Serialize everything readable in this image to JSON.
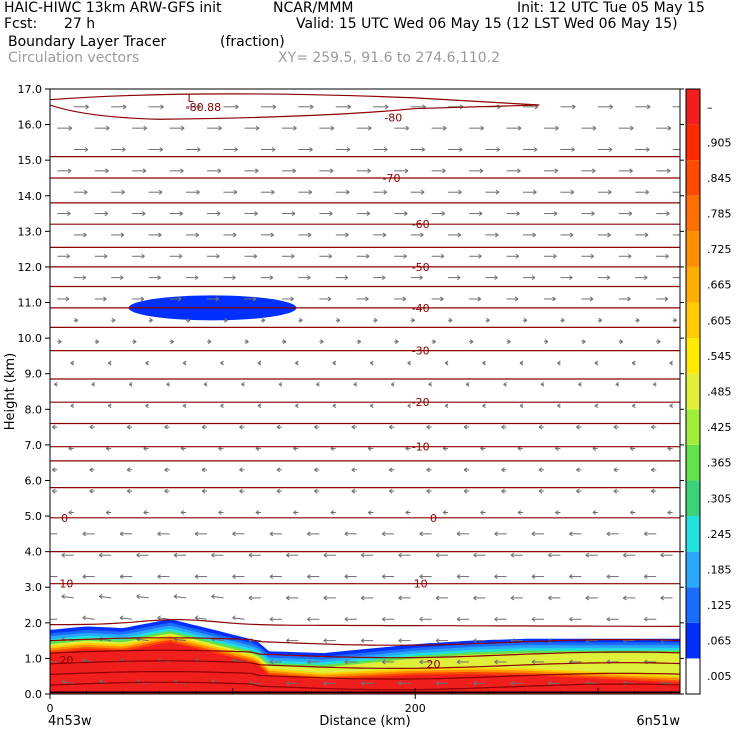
{
  "header": {
    "model": "HAIC-HIWC 13km ARW-GFS init",
    "org": "NCAR/MMM",
    "init": "Init: 12 UTC Tue 05 May 15",
    "fcst_label": "Fcst:",
    "fcst_value": "27 h",
    "valid": "Valid: 15 UTC Wed 06 May 15 (12 LST Wed 06 May 15)",
    "field": "Boundary Layer Tracer",
    "field_units": "(fraction)",
    "vectors": "Circulation vectors",
    "xy": "XY= 259.5, 91.6 to 274.6,110.2"
  },
  "colors": {
    "contour": "#8b0000",
    "vector": "#707070",
    "scale": [
      "#ffffff",
      "#0030ff",
      "#1a6dff",
      "#2aa8ff",
      "#20e0e0",
      "#3cd27a",
      "#63e04b",
      "#a0ee3a",
      "#e0f03a",
      "#ffea00",
      "#ffcc00",
      "#ffae00",
      "#ff8e00",
      "#ff6e00",
      "#ff4a00",
      "#ff2a00",
      "#f11e1e"
    ]
  },
  "chart_data": {
    "type": "heatmap",
    "title": "Boundary Layer Tracer",
    "xlabel": "Distance (km)",
    "ylabel": "Height (km)",
    "xlim": [
      0,
      345
    ],
    "ylim": [
      0,
      17
    ],
    "x_ticks": [
      0,
      200
    ],
    "x_tick_labels": [
      "0",
      "200"
    ],
    "x_endpoint_labels": [
      "4n53w",
      "6n51w"
    ],
    "y_ticks": [
      0,
      1,
      2,
      3,
      4,
      5,
      6,
      7,
      8,
      9,
      10,
      11,
      12,
      13,
      14,
      15,
      16,
      17
    ],
    "y_tick_labels": [
      "0.0",
      "1.0",
      "2.0",
      "3.0",
      "4.0",
      "5.0",
      "6.0",
      "7.0",
      "8.0",
      "9.0",
      "10.0",
      "11.0",
      "12.0",
      "13.0",
      "14.0",
      "15.0",
      "16.0",
      "17.0"
    ],
    "colorbar_labels": [
      ".005",
      ".065",
      ".125",
      ".185",
      ".245",
      ".305",
      ".365",
      ".425",
      ".485",
      ".545",
      ".605",
      ".665",
      ".725",
      ".785",
      ".845",
      ".905",
      "–"
    ],
    "contour_labels": [
      {
        "text": "-80.88",
        "x": 84,
        "z": 16.5
      },
      {
        "text": "L",
        "x": 77,
        "z": 16.75
      },
      {
        "text": "-80",
        "x": 188,
        "z": 16.2
      },
      {
        "text": "-70",
        "x": 187,
        "z": 14.5
      },
      {
        "text": "-60",
        "x": 203,
        "z": 13.2
      },
      {
        "text": "-50",
        "x": 203,
        "z": 12.0
      },
      {
        "text": "-40",
        "x": 203,
        "z": 10.85
      },
      {
        "text": "-30",
        "x": 203,
        "z": 9.65
      },
      {
        "text": "-20",
        "x": 203,
        "z": 8.2
      },
      {
        "text": "-10",
        "x": 203,
        "z": 6.95
      },
      {
        "text": "0",
        "x": 8,
        "z": 4.95
      },
      {
        "text": "0",
        "x": 210,
        "z": 4.95
      },
      {
        "text": "10",
        "x": 9,
        "z": 3.1
      },
      {
        "text": "10",
        "x": 203,
        "z": 3.1
      },
      {
        "text": "20",
        "x": 9,
        "z": 0.95
      },
      {
        "text": "20",
        "x": 210,
        "z": 0.85
      }
    ],
    "tracer_regions": [
      {
        "name": "boundary-layer",
        "x": [
          0,
          20,
          40,
          60,
          66,
          90,
          113,
          120,
          150,
          180,
          200,
          230,
          260,
          290,
          345
        ],
        "top_z": [
          1.8,
          1.9,
          1.85,
          2.05,
          2.1,
          1.8,
          1.5,
          1.2,
          1.15,
          1.3,
          1.4,
          1.5,
          1.55,
          1.55,
          1.55
        ]
      },
      {
        "name": "upper-blob",
        "x_center": 89,
        "x_half_width": 46,
        "z_center": 10.85,
        "z_half_height": 0.35,
        "value": 0.03
      }
    ]
  }
}
